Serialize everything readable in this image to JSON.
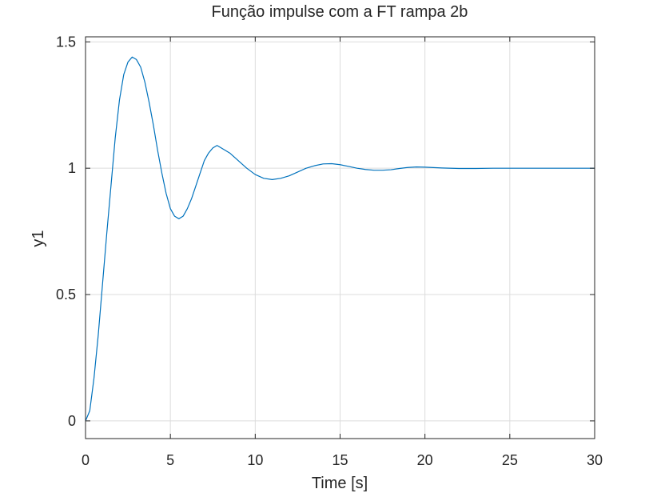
{
  "chart_data": {
    "type": "line",
    "title": "Função impulse com a FT rampa 2b",
    "xlabel": "Time [s]",
    "ylabel": "y1",
    "xlim": [
      0,
      30
    ],
    "ylim": [
      -0.07,
      1.52
    ],
    "xticks": [
      0,
      5,
      10,
      15,
      20,
      25,
      30
    ],
    "xtick_labels": [
      "0",
      "5",
      "10",
      "15",
      "20",
      "25",
      "30"
    ],
    "yticks": [
      0,
      0.5,
      1,
      1.5
    ],
    "ytick_labels": [
      "0",
      "0.5",
      "1",
      "1.5"
    ],
    "grid": true,
    "legend": "none",
    "colors": {
      "line": "#0072bd",
      "grid": "#dcdcdc",
      "axes": "#262626"
    },
    "series": [
      {
        "x": [
          0,
          0.25,
          0.5,
          0.75,
          1.0,
          1.25,
          1.5,
          1.75,
          2.0,
          2.25,
          2.5,
          2.75,
          3.0,
          3.25,
          3.5,
          3.75,
          4.0,
          4.25,
          4.5,
          4.75,
          5.0,
          5.25,
          5.5,
          5.75,
          6.0,
          6.25,
          6.5,
          6.75,
          7.0,
          7.25,
          7.5,
          7.75,
          8.0,
          8.5,
          9.0,
          9.5,
          10.0,
          10.5,
          11.0,
          11.5,
          12.0,
          12.5,
          13.0,
          13.5,
          14.0,
          14.5,
          15.0,
          15.5,
          16.0,
          16.5,
          17.0,
          17.5,
          18.0,
          18.5,
          19.0,
          19.5,
          20.0,
          21.0,
          22.0,
          23.0,
          24.0,
          25.0,
          26.0,
          27.0,
          28.0,
          29.0,
          30.0
        ],
        "y": [
          0,
          0.04,
          0.17,
          0.34,
          0.54,
          0.74,
          0.93,
          1.12,
          1.27,
          1.37,
          1.42,
          1.44,
          1.43,
          1.4,
          1.34,
          1.26,
          1.17,
          1.07,
          0.98,
          0.9,
          0.84,
          0.81,
          0.8,
          0.81,
          0.84,
          0.88,
          0.93,
          0.98,
          1.03,
          1.06,
          1.08,
          1.09,
          1.08,
          1.06,
          1.03,
          1.0,
          0.975,
          0.96,
          0.955,
          0.96,
          0.97,
          0.985,
          1.0,
          1.01,
          1.017,
          1.018,
          1.014,
          1.007,
          1.0,
          0.995,
          0.992,
          0.992,
          0.994,
          0.999,
          1.003,
          1.005,
          1.004,
          1.001,
          0.999,
          0.999,
          1.0,
          1.0,
          1.0,
          1.0,
          1.0,
          1.0,
          1.0
        ]
      }
    ]
  }
}
